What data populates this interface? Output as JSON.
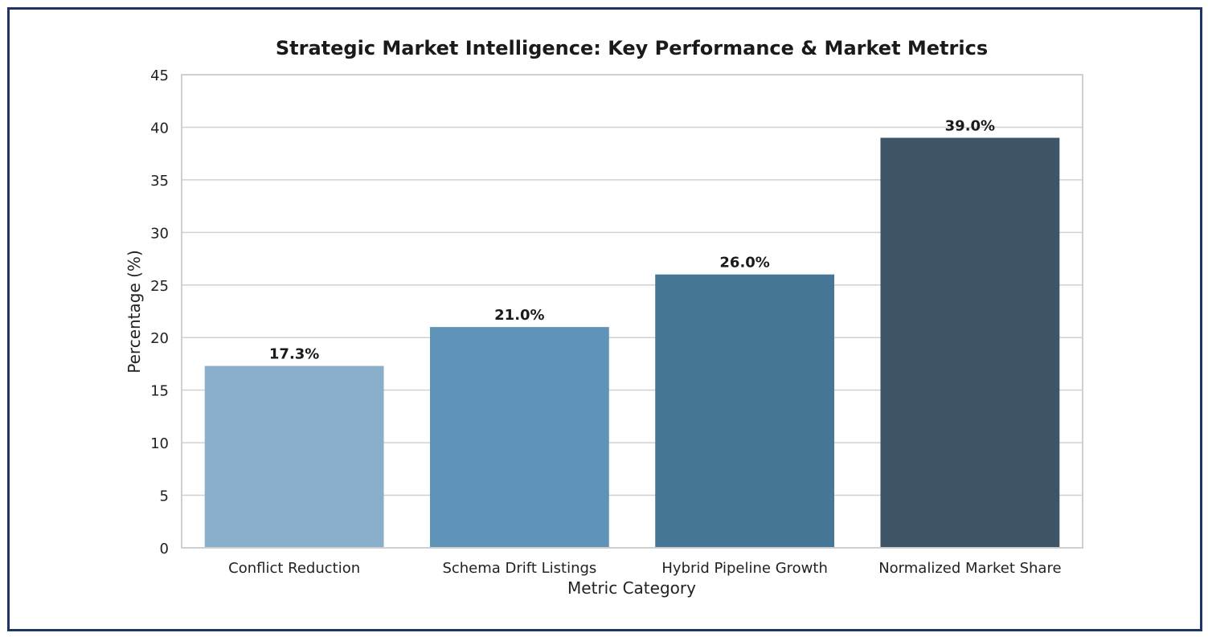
{
  "chart_data": {
    "type": "bar",
    "title": "Strategic Market Intelligence: Key Performance & Market Metrics",
    "xlabel": "Metric Category",
    "ylabel": "Percentage (%)",
    "categories": [
      "Conflict Reduction",
      "Schema Drift Listings",
      "Hybrid Pipeline Growth",
      "Normalized Market Share"
    ],
    "values": [
      17.3,
      21.0,
      26.0,
      39.0
    ],
    "data_labels": [
      "17.3%",
      "21.0%",
      "26.0%",
      "39.0%"
    ],
    "colors": [
      "#89afcb",
      "#5f93b7",
      "#467797",
      "#3d5566"
    ],
    "ylim": [
      0,
      45
    ],
    "yticks": [
      0,
      5,
      10,
      15,
      20,
      25,
      30,
      35,
      40,
      45
    ],
    "grid": "horizontal",
    "legend": "none"
  },
  "frame_color": "#1f3566"
}
